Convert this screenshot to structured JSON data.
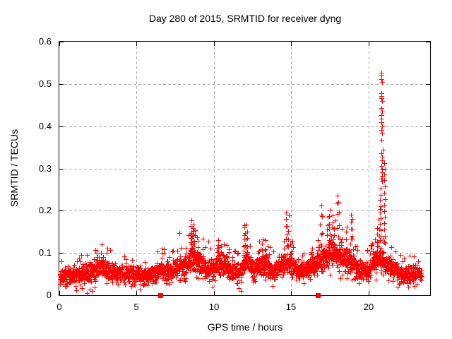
{
  "page": {
    "background": "#ffffff"
  },
  "chart_data": {
    "type": "scatter",
    "title": "Day 280 of 2015, SRMTID for receiver dyng",
    "xlabel": "GPS time / hours",
    "ylabel": "SRMTID / TECUs",
    "xlim": [
      0,
      24
    ],
    "ylim": [
      0,
      0.6
    ],
    "xtick_values": [
      0,
      5,
      10,
      15,
      20
    ],
    "xtick_labels": [
      "0",
      "5",
      "10",
      "15",
      "20"
    ],
    "ytick_values": [
      0,
      0.1,
      0.2,
      0.3,
      0.4,
      0.5,
      0.6
    ],
    "ytick_labels": [
      "0",
      "0.1",
      "0.2",
      "0.3",
      "0.4",
      "0.5",
      "0.6"
    ],
    "grid": "dashed gray at every major tick",
    "legend_position": "none",
    "marker": "plus",
    "zero_marker": "filled-square",
    "colors": {
      "points": "#ff0000",
      "grid": "#ababab",
      "border": "#000000",
      "text": "#000000",
      "background": "#ffffff"
    },
    "data_summary": {
      "description": "Dense red + cloud around 0.03-0.10 TECUs across the whole day; local peaks near hours 2.7 (0.12), 8.6 (0.175), 12.0 (0.17), 13.3 (0.135), 14.7 (0.195), 16.9-19.0 (0.18-0.24); sharp spike reaching 0.527 near hour 20.85; two zero-value filled squares on the axis near hours 6.55 and 16.73.",
      "t_start": 0.02,
      "t_end": 23.45,
      "points_per_hour": 110,
      "noise_sd_base": 0.01,
      "noise_sd_scale": 0.16,
      "baseline_profile": [
        [
          0,
          0.042
        ],
        [
          0.5,
          0.045
        ],
        [
          1,
          0.048
        ],
        [
          1.5,
          0.05
        ],
        [
          2,
          0.055
        ],
        [
          2.4,
          0.065
        ],
        [
          2.7,
          0.07
        ],
        [
          3,
          0.062
        ],
        [
          3.5,
          0.055
        ],
        [
          4,
          0.052
        ],
        [
          4.5,
          0.05
        ],
        [
          5,
          0.048
        ],
        [
          5.5,
          0.046
        ],
        [
          6,
          0.05
        ],
        [
          6.6,
          0.06
        ],
        [
          7,
          0.058
        ],
        [
          7.5,
          0.062
        ],
        [
          8,
          0.07
        ],
        [
          8.5,
          0.085
        ],
        [
          8.8,
          0.09
        ],
        [
          9.2,
          0.07
        ],
        [
          9.6,
          0.06
        ],
        [
          10,
          0.068
        ],
        [
          10.4,
          0.078
        ],
        [
          10.8,
          0.07
        ],
        [
          11.2,
          0.058
        ],
        [
          11.6,
          0.052
        ],
        [
          12,
          0.08
        ],
        [
          12.2,
          0.085
        ],
        [
          12.6,
          0.06
        ],
        [
          13,
          0.07
        ],
        [
          13.3,
          0.078
        ],
        [
          13.7,
          0.058
        ],
        [
          14.1,
          0.06
        ],
        [
          14.5,
          0.075
        ],
        [
          14.8,
          0.085
        ],
        [
          15.1,
          0.07
        ],
        [
          15.5,
          0.058
        ],
        [
          16,
          0.06
        ],
        [
          16.5,
          0.07
        ],
        [
          17,
          0.085
        ],
        [
          17.5,
          0.1
        ],
        [
          18,
          0.095
        ],
        [
          18.4,
          0.08
        ],
        [
          18.8,
          0.09
        ],
        [
          19.2,
          0.065
        ],
        [
          19.6,
          0.055
        ],
        [
          20,
          0.06
        ],
        [
          20.4,
          0.075
        ],
        [
          20.7,
          0.09
        ],
        [
          21,
          0.08
        ],
        [
          21.3,
          0.07
        ],
        [
          21.6,
          0.06
        ],
        [
          22,
          0.055
        ],
        [
          22.4,
          0.05
        ],
        [
          22.8,
          0.048
        ],
        [
          23.2,
          0.05
        ],
        [
          23.45,
          0.05
        ]
      ],
      "peak_columns": [
        [
          2.45,
          0.105,
          4
        ],
        [
          2.75,
          0.122,
          3
        ],
        [
          3.0,
          0.1,
          2
        ],
        [
          6.6,
          0.1,
          3
        ],
        [
          7.8,
          0.15,
          2
        ],
        [
          8.55,
          0.175,
          7
        ],
        [
          8.65,
          0.165,
          6
        ],
        [
          8.75,
          0.155,
          4
        ],
        [
          8.95,
          0.14,
          4
        ],
        [
          9.3,
          0.13,
          3
        ],
        [
          9.7,
          0.125,
          2
        ],
        [
          10.25,
          0.128,
          4
        ],
        [
          10.45,
          0.12,
          3
        ],
        [
          11.95,
          0.17,
          6
        ],
        [
          12.05,
          0.165,
          5
        ],
        [
          12.15,
          0.15,
          4
        ],
        [
          12.9,
          0.127,
          3
        ],
        [
          13.15,
          0.135,
          4
        ],
        [
          13.35,
          0.128,
          3
        ],
        [
          13.55,
          0.12,
          2
        ],
        [
          14.55,
          0.13,
          3
        ],
        [
          14.7,
          0.195,
          6
        ],
        [
          14.8,
          0.185,
          5
        ],
        [
          15.05,
          0.12,
          3
        ],
        [
          16.3,
          0.11,
          3
        ],
        [
          16.7,
          0.13,
          4
        ],
        [
          16.9,
          0.21,
          5
        ],
        [
          17.0,
          0.185,
          3
        ],
        [
          17.35,
          0.185,
          5
        ],
        [
          17.5,
          0.2,
          6
        ],
        [
          17.65,
          0.19,
          5
        ],
        [
          17.8,
          0.175,
          4
        ],
        [
          18.0,
          0.239,
          5
        ],
        [
          18.1,
          0.225,
          4
        ],
        [
          18.3,
          0.16,
          3
        ],
        [
          18.6,
          0.165,
          4
        ],
        [
          18.85,
          0.192,
          5
        ],
        [
          19.0,
          0.18,
          4
        ],
        [
          19.9,
          0.105,
          2
        ],
        [
          20.15,
          0.12,
          3
        ],
        [
          20.35,
          0.122,
          3
        ],
        [
          20.55,
          0.13,
          3
        ],
        [
          20.6,
          0.16,
          4
        ],
        [
          20.7,
          0.2,
          5
        ],
        [
          21.45,
          0.115,
          3
        ],
        [
          21.75,
          0.1,
          2
        ],
        [
          22.1,
          0.095,
          2
        ]
      ],
      "spike_points": [
        [
          20.84,
          0.527
        ],
        [
          20.86,
          0.519
        ],
        [
          20.85,
          0.512
        ],
        [
          20.87,
          0.505
        ],
        [
          20.83,
          0.478
        ],
        [
          20.86,
          0.471
        ],
        [
          20.84,
          0.466
        ],
        [
          20.88,
          0.459
        ],
        [
          20.85,
          0.443
        ],
        [
          20.87,
          0.434
        ],
        [
          20.83,
          0.427
        ],
        [
          20.86,
          0.418
        ],
        [
          20.84,
          0.409
        ],
        [
          20.88,
          0.399
        ],
        [
          20.85,
          0.391
        ],
        [
          20.87,
          0.383
        ],
        [
          20.84,
          0.367
        ],
        [
          20.92,
          0.344
        ],
        [
          20.86,
          0.336
        ],
        [
          20.9,
          0.327
        ],
        [
          20.88,
          0.319
        ],
        [
          20.85,
          0.306
        ],
        [
          20.87,
          0.297
        ],
        [
          20.91,
          0.29
        ],
        [
          20.89,
          0.283
        ],
        [
          20.86,
          0.276
        ],
        [
          20.88,
          0.269
        ],
        [
          21.04,
          0.312
        ],
        [
          21.06,
          0.299
        ],
        [
          21.03,
          0.285
        ],
        [
          21.05,
          0.272
        ],
        [
          21.07,
          0.257
        ],
        [
          21.04,
          0.243
        ],
        [
          21.06,
          0.228
        ],
        [
          21.05,
          0.214
        ],
        [
          21.03,
          0.199
        ],
        [
          21.06,
          0.185
        ],
        [
          21.04,
          0.17
        ],
        [
          21.05,
          0.155
        ],
        [
          21.07,
          0.14
        ],
        [
          20.78,
          0.252
        ],
        [
          20.8,
          0.238
        ],
        [
          20.76,
          0.225
        ],
        [
          20.79,
          0.21
        ],
        [
          20.77,
          0.196
        ],
        [
          20.81,
          0.183
        ],
        [
          20.75,
          0.168
        ],
        [
          20.78,
          0.154
        ],
        [
          20.8,
          0.141
        ],
        [
          20.74,
          0.13
        ]
      ],
      "low_outliers": [
        [
          1.1,
          0.012
        ],
        [
          1.45,
          0.016
        ],
        [
          1.8,
          0.005
        ],
        [
          1.95,
          0.013
        ],
        [
          2.15,
          0.01
        ],
        [
          2.3,
          0.018
        ],
        [
          5.2,
          0.014
        ],
        [
          9.9,
          0.02
        ],
        [
          11.6,
          0.016
        ],
        [
          11.75,
          0.01
        ],
        [
          13.8,
          0.022
        ],
        [
          19.4,
          0.028
        ],
        [
          21.9,
          0.018
        ],
        [
          22.6,
          0.02
        ],
        [
          23.0,
          0.022
        ]
      ],
      "zero_square_hours": [
        6.55,
        16.73
      ]
    }
  }
}
